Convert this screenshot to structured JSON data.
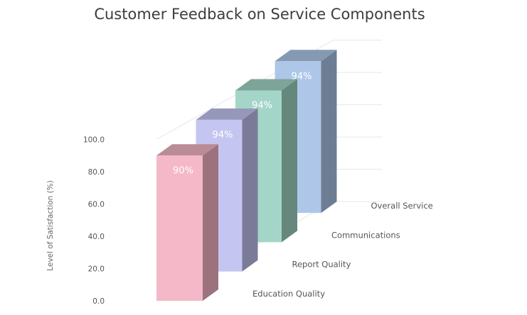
{
  "chart_data": {
    "type": "bar",
    "title": "Customer Feedback on Service Components",
    "ylabel": "Level of Satisfaction (%)",
    "xlabel": "",
    "ylim": [
      0,
      100
    ],
    "y_ticks": [
      "0.0",
      "20.0",
      "40.0",
      "60.0",
      "80.0",
      "100.0"
    ],
    "categories": [
      "Education Quality",
      "Report Quality",
      "Communications",
      "Overall Service"
    ],
    "values": [
      90,
      94,
      94,
      94
    ],
    "data_labels": [
      "90%",
      "94%",
      "94%",
      "94%"
    ],
    "colors": {
      "front": [
        "#f4b8c8",
        "#c5c5f1",
        "#a3d6c8",
        "#aec7e8"
      ],
      "side": [
        "#9c727d",
        "#7b7b99",
        "#66877c",
        "#6d7d93"
      ],
      "top": [
        "#ba8c98",
        "#9797bb",
        "#7da498",
        "#8599b3"
      ]
    },
    "grid": true,
    "legend": "none"
  }
}
